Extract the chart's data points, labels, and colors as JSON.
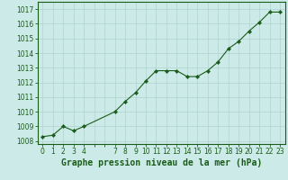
{
  "x": [
    0,
    1,
    2,
    3,
    4,
    7,
    8,
    9,
    10,
    11,
    12,
    13,
    14,
    15,
    16,
    17,
    18,
    19,
    20,
    21,
    22,
    23
  ],
  "y": [
    1008.3,
    1008.4,
    1009.0,
    1008.7,
    1009.0,
    1010.0,
    1010.7,
    1011.3,
    1012.1,
    1012.8,
    1012.8,
    1012.8,
    1012.4,
    1012.4,
    1012.8,
    1013.4,
    1014.3,
    1014.8,
    1015.5,
    1016.1,
    1016.8,
    1016.8
  ],
  "line_color": "#1a5c1a",
  "marker": "D",
  "marker_size": 2.2,
  "background_color": "#cceae7",
  "grid_color": "#b0d4d0",
  "xlabel": "Graphe pression niveau de la mer (hPa)",
  "ylim": [
    1007.8,
    1017.5
  ],
  "xlim": [
    -0.5,
    23.5
  ],
  "yticks": [
    1008,
    1009,
    1010,
    1011,
    1012,
    1013,
    1014,
    1015,
    1016,
    1017
  ],
  "xtick_positions": [
    0,
    1,
    2,
    3,
    4,
    5,
    6,
    7,
    8,
    9,
    10,
    11,
    12,
    13,
    14,
    15,
    16,
    17,
    18,
    19,
    20,
    21,
    22,
    23
  ],
  "xtick_labels": [
    "0",
    "1",
    "2",
    "3",
    "4",
    "",
    "",
    "7",
    "8",
    "9",
    "10",
    "11",
    "12",
    "13",
    "14",
    "15",
    "16",
    "17",
    "18",
    "19",
    "20",
    "21",
    "22",
    "23"
  ],
  "title_color": "#1a5c1a",
  "tick_color": "#1a5c1a",
  "label_fontsize": 7,
  "tick_fontsize": 5.5,
  "linewidth": 0.8
}
